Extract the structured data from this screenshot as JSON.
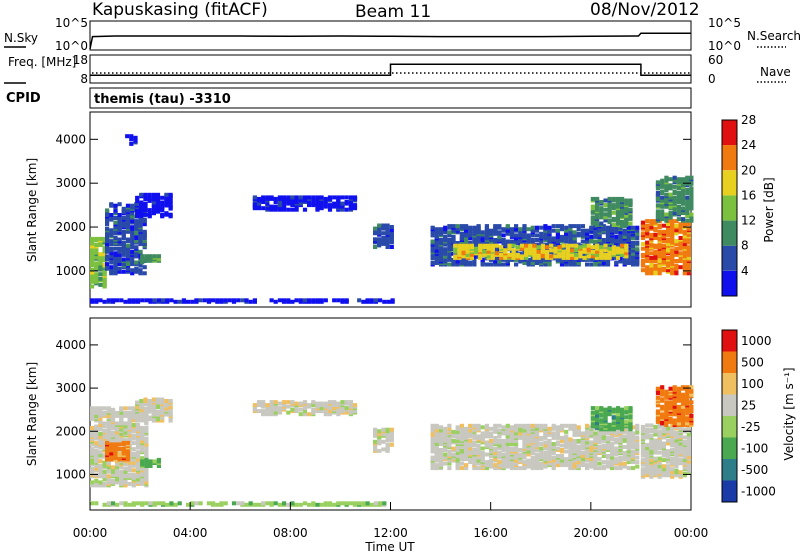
{
  "header": {
    "station": "Kapuskasing (fitACF)",
    "beam": "Beam 11",
    "date": "08/Nov/2012"
  },
  "chart_data": [
    {
      "type": "line",
      "title": "",
      "ylabel": "N.Sky",
      "y_ticks": [
        "10^5",
        "10^0"
      ],
      "right_label": "N.Search",
      "right_ticks": [
        "10^5",
        "10^0"
      ],
      "x_hours": [
        0,
        0.1,
        1,
        2,
        4,
        6,
        8,
        10,
        12,
        14,
        16,
        18,
        20,
        21.9,
        22,
        24
      ],
      "nsky_log": [
        0.0,
        2.3,
        2.4,
        2.4,
        2.4,
        2.4,
        2.35,
        2.4,
        2.35,
        2.3,
        2.3,
        2.3,
        2.35,
        2.4,
        2.9,
        2.9
      ],
      "ylim_log": [
        0,
        5
      ]
    },
    {
      "type": "line",
      "ylabel": "Freq. [MHz]",
      "y_ticks": [
        "18",
        "8"
      ],
      "right_label": "Nave",
      "right_ticks": [
        "60",
        "0"
      ],
      "x_hours": [
        0,
        12,
        12,
        22,
        22,
        24
      ],
      "freq_mhz": [
        10.6,
        10.6,
        14.8,
        14.8,
        10.6,
        10.6
      ],
      "ylim": [
        8,
        18
      ]
    },
    {
      "type": "text",
      "ylabel": "CPID",
      "value": "themis (tau) -3310"
    },
    {
      "type": "heatmap",
      "ylabel": "Slant Range [km]",
      "y_ticks": [
        "1000",
        "2000",
        "3000",
        "4000"
      ],
      "ylim": [
        200,
        4600
      ],
      "xlim_hours": [
        0,
        24
      ],
      "colorbar_label": "Power [dB]",
      "colorbar_ticks": [
        "4",
        "8",
        "12",
        "16",
        "20",
        "24",
        "28"
      ],
      "colorbar_colors": [
        "#1010ee",
        "#2a4aaa",
        "#3f8a60",
        "#7cc040",
        "#e8d020",
        "#f07a10",
        "#e01010"
      ],
      "regions": [
        {
          "t": [
            0.0,
            0.6
          ],
          "r": [
            600,
            1700
          ],
          "level": 3
        },
        {
          "t": [
            0.6,
            2.2
          ],
          "r": [
            900,
            2500
          ],
          "level": 1
        },
        {
          "t": [
            1.8,
            3.2
          ],
          "r": [
            2200,
            2700
          ],
          "level": 0
        },
        {
          "t": [
            2.0,
            2.8
          ],
          "r": [
            1150,
            1300
          ],
          "level": 2
        },
        {
          "t": [
            1.4,
            1.8
          ],
          "r": [
            3850,
            4050
          ],
          "level": 0
        },
        {
          "t": [
            6.5,
            10.5
          ],
          "r": [
            2350,
            2650
          ],
          "level": 0
        },
        {
          "t": [
            11.3,
            12.0
          ],
          "r": [
            1500,
            2000
          ],
          "level": 1
        },
        {
          "t": [
            13.6,
            21.8
          ],
          "r": [
            1100,
            2000
          ],
          "level": 1
        },
        {
          "t": [
            14.5,
            21.5
          ],
          "r": [
            1250,
            1550
          ],
          "level": 4
        },
        {
          "t": [
            20.0,
            21.6
          ],
          "r": [
            2000,
            2600
          ],
          "level": 2
        },
        {
          "t": [
            22.0,
            24.0
          ],
          "r": [
            900,
            2100
          ],
          "level": 5
        },
        {
          "t": [
            22.6,
            24.0
          ],
          "r": [
            2100,
            3100
          ],
          "level": 2
        },
        {
          "t": [
            0.0,
            12.0
          ],
          "r": [
            250,
            320
          ],
          "level": 0
        }
      ]
    },
    {
      "type": "heatmap",
      "ylabel": "Slant Range [km]",
      "y_ticks": [
        "1000",
        "2000",
        "3000",
        "4000"
      ],
      "ylim": [
        200,
        4600
      ],
      "xlim_hours": [
        0,
        24
      ],
      "x_ticks": [
        "00:00",
        "04:00",
        "08:00",
        "12:00",
        "16:00",
        "20:00",
        "00:00"
      ],
      "xlabel": "Time UT",
      "colorbar_label": "Velocity [m s⁻¹]",
      "colorbar_ticks": [
        "1000",
        "500",
        "100",
        "25",
        "-25",
        "-100",
        "-500",
        "-1000"
      ],
      "colorbar_colors": [
        "#1a3aa8",
        "#2e7e8a",
        "#4aa850",
        "#9ad060",
        "#c8c8c0",
        "#f0c060",
        "#f07a10",
        "#e01010"
      ],
      "regions": [
        {
          "t": [
            0.0,
            2.2
          ],
          "r": [
            700,
            2500
          ],
          "level": 4
        },
        {
          "t": [
            0.6,
            1.6
          ],
          "r": [
            1300,
            1700
          ],
          "level": 6
        },
        {
          "t": [
            2.0,
            2.8
          ],
          "r": [
            1150,
            1300
          ],
          "level": 2
        },
        {
          "t": [
            1.8,
            3.2
          ],
          "r": [
            2200,
            2700
          ],
          "level": 4
        },
        {
          "t": [
            6.5,
            10.5
          ],
          "r": [
            2350,
            2650
          ],
          "level": 4
        },
        {
          "t": [
            11.3,
            12.0
          ],
          "r": [
            1500,
            2000
          ],
          "level": 4
        },
        {
          "t": [
            13.6,
            21.8
          ],
          "r": [
            1100,
            2100
          ],
          "level": 4
        },
        {
          "t": [
            20.0,
            21.6
          ],
          "r": [
            2000,
            2500
          ],
          "level": 2
        },
        {
          "t": [
            22.0,
            24.0
          ],
          "r": [
            900,
            2100
          ],
          "level": 4
        },
        {
          "t": [
            22.6,
            24.0
          ],
          "r": [
            2100,
            3000
          ],
          "level": 6
        },
        {
          "t": [
            0.0,
            12.0
          ],
          "r": [
            250,
            320
          ],
          "level": 3
        }
      ]
    }
  ]
}
